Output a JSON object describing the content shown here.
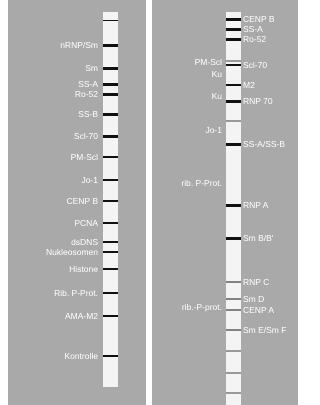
{
  "left_panel": {
    "labels": [
      "nRNP/Sm",
      "Sm",
      "SS-A",
      "Ro-52",
      "SS-B",
      "Scl-70",
      "PM-Scl",
      "Jo-1",
      "CENP B",
      "PCNA",
      "dsDNS",
      "Nukleosomen",
      "Histone",
      "Rib. P-Prot.",
      "AMA-M2",
      "Kontrolle"
    ]
  },
  "right_panel": {
    "left_labels": [
      "PM-Scl",
      "Ku",
      "Ku",
      "Jo-1",
      "rib. P-Prot.",
      "rib.-P-prot."
    ],
    "right_labels": [
      "CENP B",
      "SS-A",
      "Ro-52",
      "Scl-70",
      "M2",
      "RNP 70",
      "SS-A/SS-B",
      "RNP A",
      "Sm B/B'",
      "RNP C",
      "Sm D",
      "CENP A",
      "Sm E/Sm F"
    ]
  }
}
